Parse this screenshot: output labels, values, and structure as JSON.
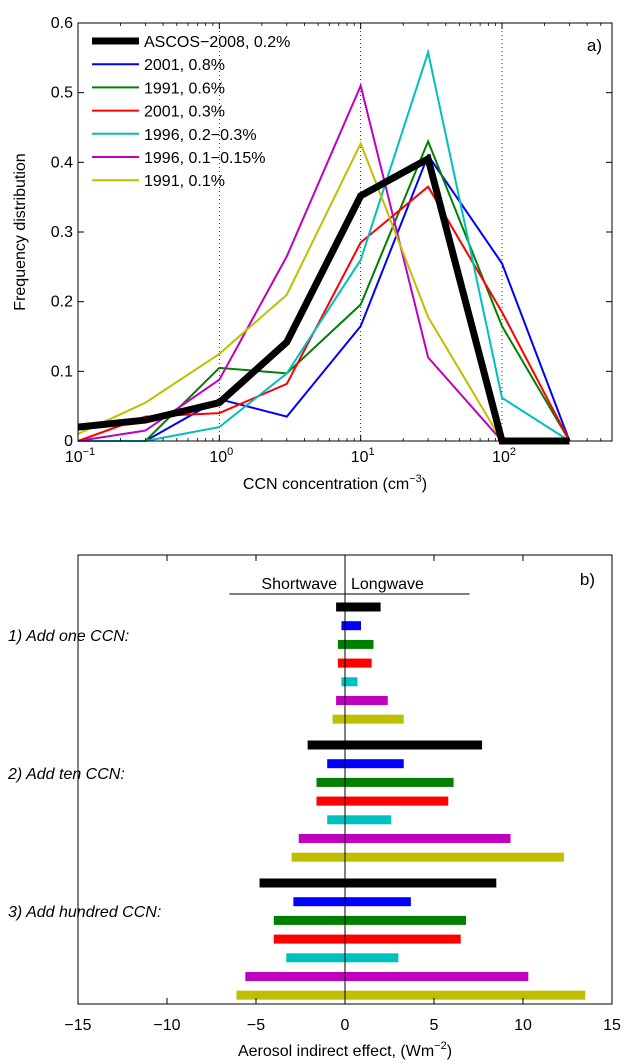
{
  "chart_data": [
    {
      "id": "a",
      "type": "line",
      "panel_label": "a)",
      "xlabel": "CCN concentration (cm",
      "xlabel_sup": "−3",
      "xlabel_end": ")",
      "ylabel": "Frequency distribution",
      "xscale": "log",
      "xlim": [
        0.1,
        600
      ],
      "ylim": [
        0,
        0.6
      ],
      "x": [
        0.1,
        0.3,
        1,
        3,
        10,
        30,
        100,
        300
      ],
      "xticks": [
        0.1,
        1,
        10,
        100
      ],
      "xtick_labels": [
        {
          "base": "10",
          "exp": "−1"
        },
        {
          "base": "10",
          "exp": "0"
        },
        {
          "base": "10",
          "exp": "1"
        },
        {
          "base": "10",
          "exp": "2"
        }
      ],
      "yticks": [
        0,
        0.1,
        0.2,
        0.3,
        0.4,
        0.5,
        0.6
      ],
      "ytick_labels": [
        "0",
        "0.1",
        "0.2",
        "0.3",
        "0.4",
        "0.5",
        "0.6"
      ],
      "vertical_dotted_gridlines_at": [
        1,
        10,
        100
      ],
      "legend_position": "top-left",
      "series": [
        {
          "name": "ASCOS−2008, 0.2%",
          "color": "#000000",
          "width": 7,
          "values": [
            0.02,
            0.03,
            0.055,
            0.142,
            0.352,
            0.405,
            0.0,
            0.0
          ]
        },
        {
          "name": "2001, 0.8%",
          "color": "#0000ff",
          "width": 2,
          "values": [
            0.0,
            0.0,
            0.06,
            0.035,
            0.165,
            0.41,
            0.255,
            0.0
          ]
        },
        {
          "name": "1991, 0.6%",
          "color": "#008000",
          "width": 2,
          "values": [
            0.0,
            0.0,
            0.105,
            0.097,
            0.196,
            0.43,
            0.165,
            0.0
          ]
        },
        {
          "name": "2001, 0.3%",
          "color": "#ff0000",
          "width": 2,
          "values": [
            0.0,
            0.035,
            0.04,
            0.082,
            0.285,
            0.365,
            0.185,
            0.0
          ]
        },
        {
          "name": "1996, 0.2−0.3%",
          "color": "#00bfbf",
          "width": 2,
          "values": [
            0.0,
            0.0,
            0.02,
            0.097,
            0.26,
            0.558,
            0.062,
            0.0
          ]
        },
        {
          "name": "1996, 0.1−0.15%",
          "color": "#bf00bf",
          "width": 2,
          "values": [
            0.0,
            0.015,
            0.088,
            0.265,
            0.51,
            0.12,
            0.0,
            0.0
          ]
        },
        {
          "name": "1991, 0.1%",
          "color": "#bfbf00",
          "width": 2,
          "values": [
            0.01,
            0.055,
            0.125,
            0.21,
            0.427,
            0.178,
            0.0,
            0.0
          ]
        }
      ]
    },
    {
      "id": "b",
      "type": "bar",
      "orientation": "horizontal",
      "panel_label": "b)",
      "xlabel": "Aerosol indirect effect, (Wm",
      "xlabel_sup": "−2",
      "xlabel_end": ")",
      "xlim": [
        -15,
        15
      ],
      "xticks": [
        -15,
        -10,
        -5,
        0,
        5,
        10,
        15
      ],
      "xtick_labels": [
        "−15",
        "−10",
        "−5",
        "0",
        "5",
        "10",
        "15"
      ],
      "header_left": "Shortwave",
      "header_right": "Longwave",
      "series_colors": [
        "#000000",
        "#0000ff",
        "#008000",
        "#ff0000",
        "#00bfbf",
        "#bf00bf",
        "#bfbf00"
      ],
      "groups": [
        {
          "label": "1) Add one CCN:",
          "bars": [
            {
              "shortwave": -0.5,
              "longwave": 2.0
            },
            {
              "shortwave": -0.2,
              "longwave": 0.9
            },
            {
              "shortwave": -0.4,
              "longwave": 1.6
            },
            {
              "shortwave": -0.4,
              "longwave": 1.5
            },
            {
              "shortwave": -0.2,
              "longwave": 0.7
            },
            {
              "shortwave": -0.5,
              "longwave": 2.4
            },
            {
              "shortwave": -0.7,
              "longwave": 3.3
            }
          ]
        },
        {
          "label": "2) Add ten CCN:",
          "bars": [
            {
              "shortwave": -2.1,
              "longwave": 7.7
            },
            {
              "shortwave": -1.0,
              "longwave": 3.3
            },
            {
              "shortwave": -1.6,
              "longwave": 6.1
            },
            {
              "shortwave": -1.6,
              "longwave": 5.8
            },
            {
              "shortwave": -1.0,
              "longwave": 2.6
            },
            {
              "shortwave": -2.6,
              "longwave": 9.3
            },
            {
              "shortwave": -3.0,
              "longwave": 12.3
            }
          ]
        },
        {
          "label": "3) Add hundred CCN:",
          "bars": [
            {
              "shortwave": -4.8,
              "longwave": 8.5
            },
            {
              "shortwave": -2.9,
              "longwave": 3.7
            },
            {
              "shortwave": -4.0,
              "longwave": 6.8
            },
            {
              "shortwave": -4.0,
              "longwave": 6.5
            },
            {
              "shortwave": -3.3,
              "longwave": 3.0
            },
            {
              "shortwave": -5.6,
              "longwave": 10.3
            },
            {
              "shortwave": -6.1,
              "longwave": 13.5
            }
          ]
        }
      ]
    }
  ]
}
